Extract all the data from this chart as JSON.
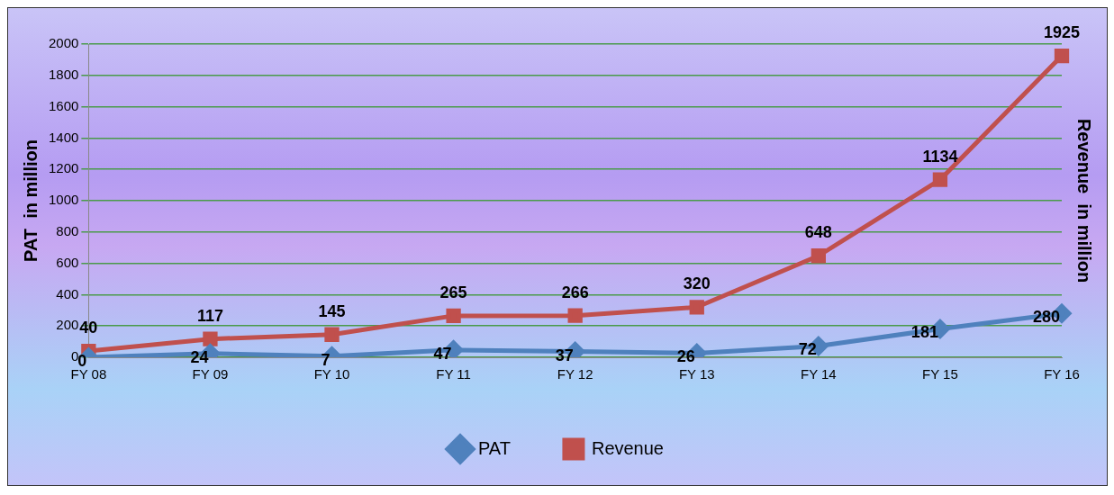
{
  "chart_data": {
    "type": "line",
    "ylabel": "PAT  in million",
    "y2label": "Revenue  in million",
    "categories": [
      "FY 08",
      "FY 09",
      "FY 10",
      "FY 11",
      "FY 12",
      "FY 13",
      "FY 14",
      "FY 15",
      "FY 16"
    ],
    "series": [
      {
        "name": "PAT",
        "color": "#4f81bd",
        "marker": "diamond",
        "values": [
          0,
          24,
          7,
          47,
          37,
          26,
          72,
          181,
          280
        ]
      },
      {
        "name": "Revenue",
        "color": "#c0504d",
        "marker": "square",
        "values": [
          40,
          117,
          145,
          265,
          266,
          320,
          648,
          1134,
          1925
        ]
      }
    ],
    "ylim": [
      0,
      2000
    ],
    "yticks": [
      0,
      200,
      400,
      600,
      800,
      1000,
      1200,
      1400,
      1600,
      1800,
      2000
    ],
    "grid": "y",
    "legend": "bottom",
    "data_labels": true,
    "line_style": "solid"
  }
}
